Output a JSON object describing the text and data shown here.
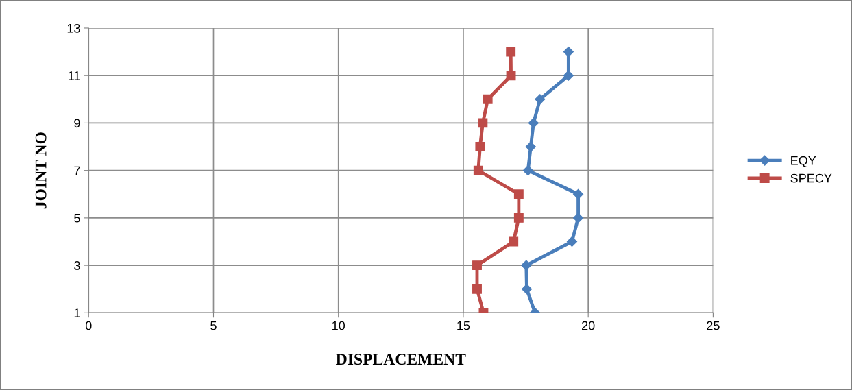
{
  "chart_data": {
    "type": "line",
    "xlabel": "DISPLACEMENT",
    "ylabel": "JOINT NO",
    "xlim": [
      0,
      25
    ],
    "xticks": [
      0,
      5,
      10,
      15,
      20,
      25
    ],
    "ylim": [
      1,
      13
    ],
    "yticks": [
      1,
      3,
      5,
      7,
      9,
      11,
      13
    ],
    "grid": true,
    "legend": "right",
    "line_style": "solid",
    "series": [
      {
        "name": "EQY",
        "color": "#4a7ebb",
        "marker": "diamond",
        "x": [
          17.87,
          17.54,
          17.52,
          19.35,
          19.6,
          19.6,
          17.59,
          17.7,
          17.81,
          18.07,
          19.21,
          19.21
        ],
        "values": [
          1,
          2,
          3,
          4,
          5,
          6,
          7,
          8,
          9,
          10,
          11,
          12
        ]
      },
      {
        "name": "SPECY",
        "color": "#be4b48",
        "marker": "square",
        "x": [
          15.81,
          15.55,
          15.55,
          17.01,
          17.22,
          17.22,
          15.6,
          15.67,
          15.78,
          15.98,
          16.91,
          16.9
        ],
        "values": [
          1,
          2,
          3,
          4,
          5,
          6,
          7,
          8,
          9,
          10,
          11,
          12
        ]
      }
    ]
  }
}
